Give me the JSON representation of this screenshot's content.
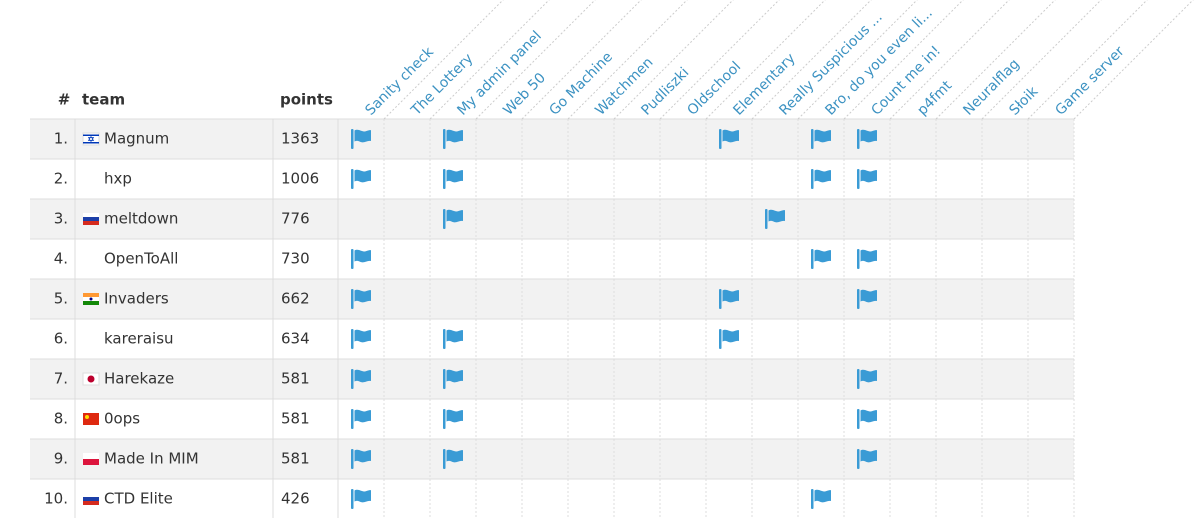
{
  "scoreboard": {
    "headers": {
      "rank": "#",
      "team": "team",
      "points": "points"
    },
    "challenges": [
      "Sanity check",
      "The Lottery",
      "My admin panel",
      "Web 50",
      "Go Machine",
      "Watchmen",
      "Pudliszki",
      "Oldschool",
      "Elementary",
      "Really Suspicious ...",
      "Bro, do you even li...",
      "Count me in!",
      "p4fmt",
      "Neuralflag",
      "Słoik",
      "Game server"
    ],
    "rows": [
      {
        "rank": "1.",
        "flag": "il",
        "team": "Magnum",
        "points": "1363",
        "solved": [
          true,
          false,
          true,
          false,
          false,
          false,
          false,
          false,
          true,
          false,
          true,
          true,
          false,
          false,
          false,
          false
        ]
      },
      {
        "rank": "2.",
        "team": "hxp",
        "points": "1006",
        "solved": [
          true,
          false,
          true,
          false,
          false,
          false,
          false,
          false,
          false,
          false,
          true,
          true,
          false,
          false,
          false,
          false
        ]
      },
      {
        "rank": "3.",
        "flag": "ru",
        "team": "meltdown",
        "points": "776",
        "solved": [
          false,
          false,
          true,
          false,
          false,
          false,
          false,
          false,
          false,
          true,
          false,
          false,
          false,
          false,
          false,
          false
        ]
      },
      {
        "rank": "4.",
        "team": "OpenToAll",
        "points": "730",
        "solved": [
          true,
          false,
          false,
          false,
          false,
          false,
          false,
          false,
          false,
          false,
          true,
          true,
          false,
          false,
          false,
          false
        ]
      },
      {
        "rank": "5.",
        "flag": "in",
        "team": "Invaders",
        "points": "662",
        "solved": [
          true,
          false,
          false,
          false,
          false,
          false,
          false,
          false,
          true,
          false,
          false,
          true,
          false,
          false,
          false,
          false
        ]
      },
      {
        "rank": "6.",
        "team": "kareraisu",
        "points": "634",
        "solved": [
          true,
          false,
          true,
          false,
          false,
          false,
          false,
          false,
          true,
          false,
          false,
          false,
          false,
          false,
          false,
          false
        ]
      },
      {
        "rank": "7.",
        "flag": "jp",
        "team": "Harekaze",
        "points": "581",
        "solved": [
          true,
          false,
          true,
          false,
          false,
          false,
          false,
          false,
          false,
          false,
          false,
          true,
          false,
          false,
          false,
          false
        ]
      },
      {
        "rank": "8.",
        "flag": "cn",
        "team": "0ops",
        "points": "581",
        "solved": [
          true,
          false,
          true,
          false,
          false,
          false,
          false,
          false,
          false,
          false,
          false,
          true,
          false,
          false,
          false,
          false
        ]
      },
      {
        "rank": "9.",
        "flag": "pl",
        "team": "Made In MIM",
        "points": "581",
        "solved": [
          true,
          false,
          true,
          false,
          false,
          false,
          false,
          false,
          false,
          false,
          false,
          true,
          false,
          false,
          false,
          false
        ]
      },
      {
        "rank": "10.",
        "flag": "ru",
        "team": "CTD Elite",
        "points": "426",
        "solved": [
          true,
          false,
          false,
          false,
          false,
          false,
          false,
          false,
          false,
          false,
          true,
          false,
          false,
          false,
          false,
          false
        ]
      }
    ]
  }
}
